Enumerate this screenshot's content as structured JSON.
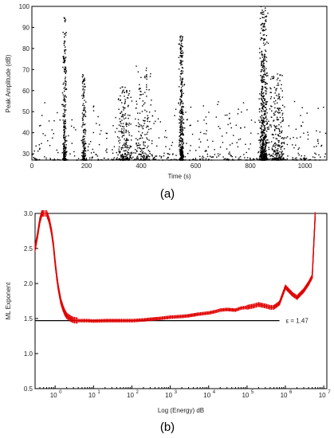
{
  "chart_data": [
    {
      "panel_label": "(a)",
      "type": "scatter",
      "title": "",
      "xlabel": "Time (s)",
      "ylabel": "Peak Amplitude (dB)",
      "xlim": [
        0,
        1080
      ],
      "ylim": [
        27,
        100
      ],
      "xticks": [
        0,
        200,
        400,
        600,
        800,
        1000
      ],
      "yticks": [
        30,
        40,
        50,
        60,
        70,
        80,
        90,
        100
      ],
      "marker_color": "#000000",
      "baseline_amplitude": 27,
      "bursts": [
        {
          "time": 120,
          "width": 6,
          "count": 260,
          "peak": 95
        },
        {
          "time": 190,
          "width": 7,
          "count": 160,
          "peak": 68
        },
        {
          "time": 340,
          "width": 25,
          "count": 220,
          "peak": 62
        },
        {
          "time": 410,
          "width": 30,
          "count": 180,
          "peak": 72
        },
        {
          "time": 548,
          "width": 8,
          "count": 380,
          "peak": 86
        },
        {
          "time": 848,
          "width": 14,
          "count": 620,
          "peak": 100
        },
        {
          "time": 900,
          "width": 30,
          "count": 260,
          "peak": 68
        }
      ],
      "background_events": 520
    },
    {
      "panel_label": "(b)",
      "type": "line",
      "title": "",
      "xlabel": "Log (Energy) dB",
      "ylabel": "ML Exponent",
      "xscale": "log",
      "xlim": [
        0.3,
        12000000
      ],
      "ylim": [
        0.5,
        3.0
      ],
      "xticks": [
        1,
        10,
        100,
        1000,
        10000,
        100000,
        1000000,
        10000000
      ],
      "xtick_labels": [
        "10",
        "10",
        "10",
        "10",
        "10",
        "10",
        "10",
        "10"
      ],
      "xtick_exponents": [
        "0",
        "1",
        "2",
        "3",
        "4",
        "5",
        "6",
        "7"
      ],
      "yticks": [
        0.5,
        1.0,
        1.5,
        2.0,
        2.5,
        3.0
      ],
      "ytick_labels": [
        "0.5",
        "1.0",
        "1.5",
        "2.0",
        "2.5",
        "3.0"
      ],
      "series": [
        {
          "color": "#e00000",
          "x": [
            0.3,
            0.35,
            0.4,
            0.45,
            0.5,
            0.55,
            0.6,
            0.65,
            0.7,
            0.8,
            0.9,
            1.0,
            1.1,
            1.2,
            1.4,
            1.6,
            1.8,
            2.0,
            2.5,
            3.0,
            4.0,
            5.0,
            7.0,
            10,
            20,
            50,
            100,
            200,
            300,
            500,
            1000,
            2000,
            3000,
            5000,
            10000,
            15000,
            20000,
            30000,
            50000,
            70000,
            100000,
            150000,
            200000,
            300000,
            400000,
            500000,
            700000,
            1000000,
            1500000,
            2000000,
            3000000,
            4000000,
            5000000,
            6000000
          ],
          "y": [
            2.5,
            2.7,
            2.9,
            3.0,
            3.0,
            3.0,
            3.0,
            2.95,
            2.9,
            2.75,
            2.55,
            2.3,
            2.1,
            1.95,
            1.75,
            1.65,
            1.58,
            1.54,
            1.5,
            1.48,
            1.47,
            1.47,
            1.47,
            1.465,
            1.47,
            1.47,
            1.47,
            1.48,
            1.49,
            1.5,
            1.52,
            1.53,
            1.54,
            1.56,
            1.58,
            1.6,
            1.62,
            1.63,
            1.62,
            1.65,
            1.66,
            1.68,
            1.7,
            1.68,
            1.66,
            1.66,
            1.72,
            1.95,
            1.85,
            1.8,
            1.9,
            2.0,
            2.1,
            3.0
          ]
        }
      ],
      "reference_line": {
        "y": 1.47,
        "x_from": 0.3,
        "x_to": 700000,
        "label": "ε = 1.47"
      }
    }
  ]
}
